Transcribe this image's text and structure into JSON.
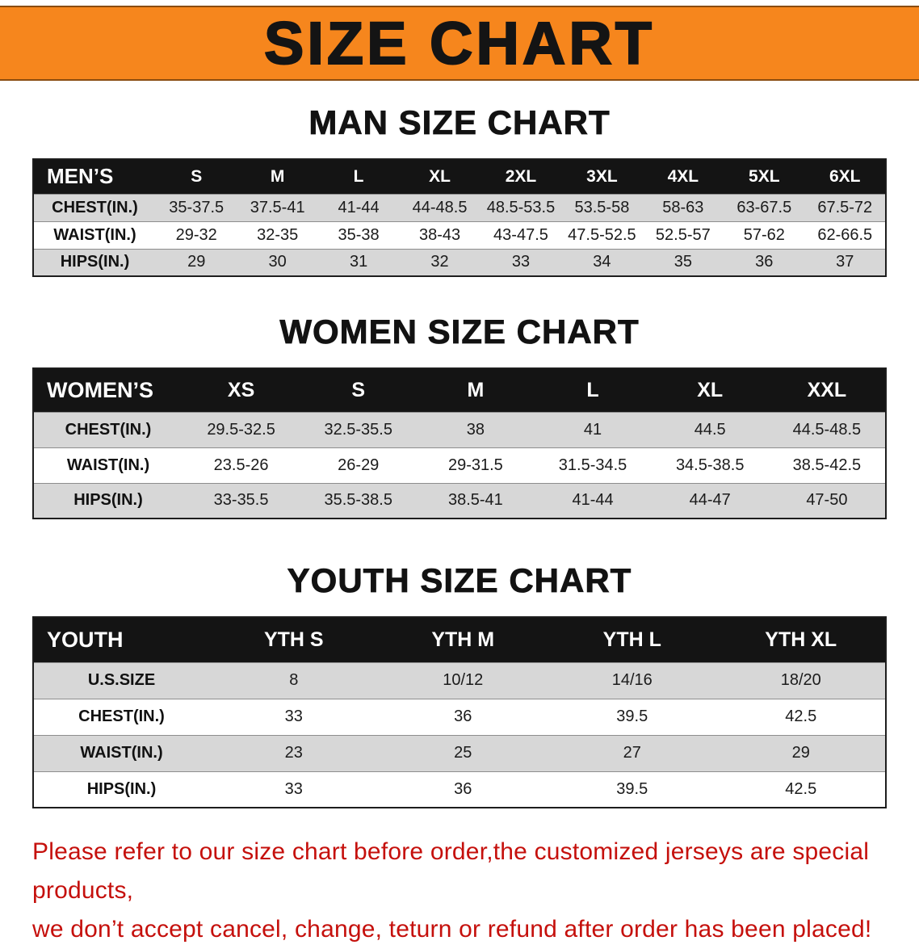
{
  "banner": {
    "title": "SIZE CHART",
    "bg_color": "#f6861d",
    "text_color": "#141414"
  },
  "sections": [
    {
      "id": "men",
      "title": "MAN SIZE CHART",
      "table": {
        "header": [
          "MEN’S",
          "S",
          "M",
          "L",
          "XL",
          "2XL",
          "3XL",
          "4XL",
          "5XL",
          "6XL"
        ],
        "rows": [
          {
            "label": "CHEST(IN.)",
            "values": [
              "35-37.5",
              "37.5-41",
              "41-44",
              "44-48.5",
              "48.5-53.5",
              "53.5-58",
              "58-63",
              "63-67.5",
              "67.5-72"
            ]
          },
          {
            "label": "WAIST(IN.)",
            "values": [
              "29-32",
              "32-35",
              "35-38",
              "38-43",
              "43-47.5",
              "47.5-52.5",
              "52.5-57",
              "57-62",
              "62-66.5"
            ]
          },
          {
            "label": "HIPS(IN.)",
            "values": [
              "29",
              "30",
              "31",
              "32",
              "33",
              "34",
              "35",
              "36",
              "37"
            ]
          }
        ]
      }
    },
    {
      "id": "women",
      "title": "WOMEN SIZE CHART",
      "table": {
        "header": [
          "WOMEN’S",
          "XS",
          "S",
          "M",
          "L",
          "XL",
          "XXL"
        ],
        "rows": [
          {
            "label": "CHEST(IN.)",
            "values": [
              "29.5-32.5",
              "32.5-35.5",
              "38",
              "41",
              "44.5",
              "44.5-48.5"
            ]
          },
          {
            "label": "WAIST(IN.)",
            "values": [
              "23.5-26",
              "26-29",
              "29-31.5",
              "31.5-34.5",
              "34.5-38.5",
              "38.5-42.5"
            ]
          },
          {
            "label": "HIPS(IN.)",
            "values": [
              "33-35.5",
              "35.5-38.5",
              "38.5-41",
              "41-44",
              "44-47",
              "47-50"
            ]
          }
        ]
      }
    },
    {
      "id": "youth",
      "title": "YOUTH SIZE CHART",
      "table": {
        "header": [
          "YOUTH",
          "YTH S",
          "YTH M",
          "YTH L",
          "YTH XL"
        ],
        "rows": [
          {
            "label": "U.S.SIZE",
            "values": [
              "8",
              "10/12",
              "14/16",
              "18/20"
            ]
          },
          {
            "label": "CHEST(IN.)",
            "values": [
              "33",
              "36",
              "39.5",
              "42.5"
            ]
          },
          {
            "label": "WAIST(IN.)",
            "values": [
              "23",
              "25",
              "27",
              "29"
            ]
          },
          {
            "label": "HIPS(IN.)",
            "values": [
              "33",
              "36",
              "39.5",
              "42.5"
            ]
          }
        ]
      }
    }
  ],
  "footer": {
    "color": "#c5100c",
    "lines": [
      "Please refer to our size chart before order,the customized jerseys are special products,",
      "we don’t accept cancel, change, teturn or refund after order has been placed!"
    ]
  }
}
